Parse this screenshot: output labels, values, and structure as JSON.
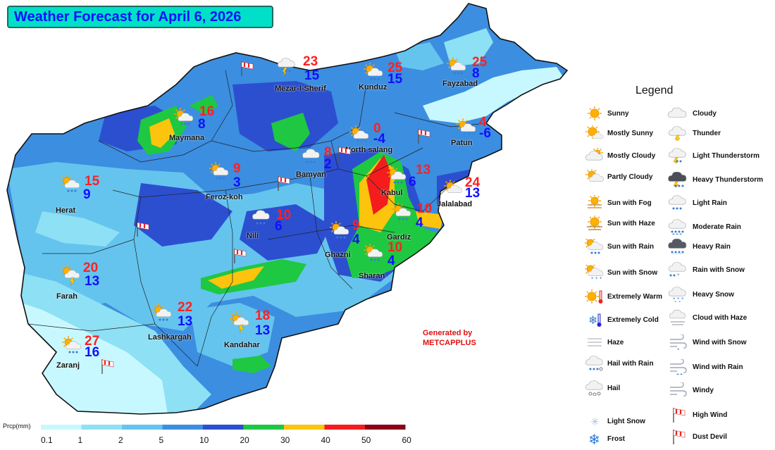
{
  "title": "Weather Forecast for April 6, 2026",
  "credit": {
    "line1": "Generated by",
    "line2": "METCAPPLUS"
  },
  "cities": [
    {
      "name": "Mezar-I-Sherif",
      "max": "23",
      "min": "15",
      "icon": "light-thunderstorm-icon"
    },
    {
      "name": "Kunduz",
      "max": "25",
      "min": "15",
      "icon": "sun-with-rain-icon"
    },
    {
      "name": "Fayzabad",
      "max": "25",
      "min": "8",
      "icon": "sun-with-rain-icon"
    },
    {
      "name": "Maymana",
      "max": "16",
      "min": "8",
      "icon": "sun-with-rain-icon"
    },
    {
      "name": "North salang",
      "max": "0",
      "min": "-4",
      "icon": "sun-with-snow-icon"
    },
    {
      "name": "Patun",
      "max": "4",
      "min": "-6",
      "icon": "sun-with-snow-icon"
    },
    {
      "name": "Bamyan",
      "max": "8",
      "min": "2",
      "icon": "light-rain-icon"
    },
    {
      "name": "Herat",
      "max": "15",
      "min": "9",
      "icon": "sun-with-rain-icon"
    },
    {
      "name": "Feroz-koh",
      "max": "9",
      "min": "3",
      "icon": "sun-with-rain-icon"
    },
    {
      "name": "Kabul",
      "max": "13",
      "min": "6",
      "icon": "sun-with-rain-icon"
    },
    {
      "name": "Jalalabad",
      "max": "24",
      "min": "13",
      "icon": "partly-cloudy-icon"
    },
    {
      "name": "Nili",
      "max": "10",
      "min": "6",
      "icon": "light-rain-icon"
    },
    {
      "name": "Gardiz",
      "max": "10",
      "min": "4",
      "icon": "sun-with-rain-icon"
    },
    {
      "name": "Ghazni",
      "max": "9",
      "min": "4",
      "icon": "sun-with-rain-icon"
    },
    {
      "name": "Sharan",
      "max": "10",
      "min": "4",
      "icon": "sun-with-rain-icon"
    },
    {
      "name": "Farah",
      "max": "20",
      "min": "13",
      "icon": "sun-with-thunder-icon"
    },
    {
      "name": "Lashkargah",
      "max": "22",
      "min": "13",
      "icon": "sun-with-rain-icon"
    },
    {
      "name": "Kandahar",
      "max": "18",
      "min": "13",
      "icon": "sun-with-thunder-icon"
    },
    {
      "name": "Zaranj",
      "max": "27",
      "min": "16",
      "icon": "sun-with-rain-icon"
    }
  ],
  "legend": {
    "title": "Legend",
    "items": [
      {
        "label": "Sunny",
        "icon": "sunny-icon"
      },
      {
        "label": "Mostly Sunny",
        "icon": "mostly-sunny-icon"
      },
      {
        "label": "Mostly Cloudy",
        "icon": "mostly-cloudy-icon"
      },
      {
        "label": "Partly Cloudy",
        "icon": "partly-cloudy-icon"
      },
      {
        "label": "Sun with Fog",
        "icon": "sun-with-fog-icon"
      },
      {
        "label": "Sun with Haze",
        "icon": "sun-with-haze-icon"
      },
      {
        "label": "Sun with Rain",
        "icon": "sun-with-rain-icon"
      },
      {
        "label": "Sun with Snow",
        "icon": "sun-with-snow-icon"
      },
      {
        "label": "Extremely Warm",
        "icon": "extremely-warm-icon"
      },
      {
        "label": "Extremely Cold",
        "icon": "extremely-cold-icon"
      },
      {
        "label": "Haze",
        "icon": "haze-icon"
      },
      {
        "label": "Hail with Rain",
        "icon": "hail-with-rain-icon"
      },
      {
        "label": "Hail",
        "icon": "hail-icon"
      },
      {
        "label": "Light Snow",
        "icon": "light-snow-icon"
      },
      {
        "label": "Frost",
        "icon": "frost-icon"
      },
      {
        "label": "Cloudy",
        "icon": "cloudy-icon"
      },
      {
        "label": "Thunder",
        "icon": "thunder-icon"
      },
      {
        "label": "Light Thunderstorm",
        "icon": "light-thunderstorm-icon"
      },
      {
        "label": "Heavy Thunderstorm",
        "icon": "heavy-thunderstorm-icon"
      },
      {
        "label": "Light Rain",
        "icon": "light-rain-icon"
      },
      {
        "label": "Moderate Rain",
        "icon": "moderate-rain-icon"
      },
      {
        "label": "Heavy Rain",
        "icon": "heavy-rain-icon"
      },
      {
        "label": "Rain with Snow",
        "icon": "rain-with-snow-icon"
      },
      {
        "label": "Heavy Snow",
        "icon": "heavy-snow-icon"
      },
      {
        "label": "Cloud with Haze",
        "icon": "cloud-with-haze-icon"
      },
      {
        "label": "Wind with Snow",
        "icon": "wind-with-snow-icon"
      },
      {
        "label": "Wind with Rain",
        "icon": "wind-with-rain-icon"
      },
      {
        "label": "Windy",
        "icon": "windy-icon"
      },
      {
        "label": "High Wind",
        "icon": "high-wind-icon"
      },
      {
        "label": "Dust Devil",
        "icon": "dust-devil-icon"
      }
    ]
  },
  "colorbar": {
    "label": "Prcp(mm)",
    "ticks": [
      "0.1",
      "1",
      "2",
      "5",
      "10",
      "20",
      "30",
      "40",
      "50",
      "60"
    ],
    "colors": [
      "#c8f8ff",
      "#8ee0f4",
      "#64c4ee",
      "#3c8ee0",
      "#2c4fd0",
      "#1ec842",
      "#fcc40c",
      "#f41c1c",
      "#8c0018"
    ]
  }
}
